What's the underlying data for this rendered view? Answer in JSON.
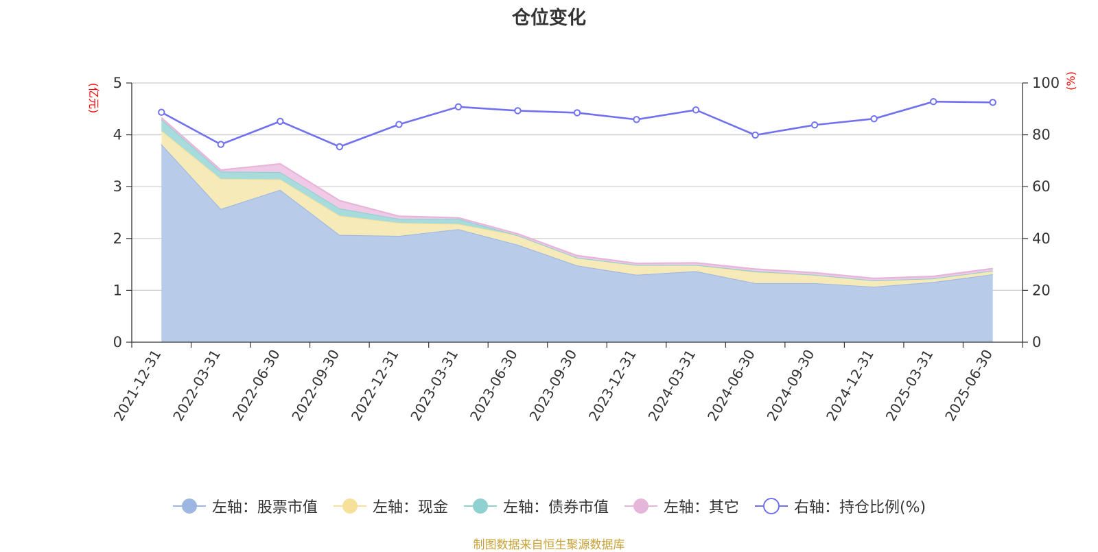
{
  "title": "仓位变化",
  "chart_data": {
    "type": "area",
    "categories": [
      "2021-12-31",
      "2022-03-31",
      "2022-06-30",
      "2022-09-30",
      "2022-12-31",
      "2023-03-31",
      "2023-06-30",
      "2023-09-30",
      "2023-12-31",
      "2024-03-31",
      "2024-06-30",
      "2024-09-30",
      "2024-12-31",
      "2025-03-31",
      "2025-06-30"
    ],
    "left_axis": {
      "unit_label": "(亿元)",
      "ylim": [
        0,
        5
      ],
      "ticks": [
        "0",
        "1",
        "2",
        "3",
        "4",
        "5"
      ]
    },
    "right_axis": {
      "unit_label": "(%)",
      "ylim": [
        0,
        100
      ],
      "ticks": [
        "0",
        "20",
        "40",
        "60",
        "80",
        "100"
      ]
    },
    "grid": true,
    "legend_position": "bottom",
    "series": [
      {
        "name": "左轴：股票市值",
        "axis": "left",
        "stack": true,
        "color": "#9db7e2",
        "fill": "#b8cce9",
        "values": [
          3.82,
          2.57,
          2.94,
          2.07,
          2.05,
          2.18,
          1.88,
          1.48,
          1.3,
          1.37,
          1.14,
          1.14,
          1.07,
          1.16,
          1.31
        ]
      },
      {
        "name": "左轴：现金",
        "axis": "left",
        "stack": true,
        "color": "#f6e19a",
        "fill": "#f7eab9",
        "values": [
          0.26,
          0.58,
          0.2,
          0.37,
          0.25,
          0.1,
          0.18,
          0.15,
          0.19,
          0.12,
          0.21,
          0.16,
          0.12,
          0.07,
          0.07
        ]
      },
      {
        "name": "左轴：债券市值",
        "axis": "left",
        "stack": true,
        "color": "#8fd0d0",
        "fill": "#a8dcdc",
        "values": [
          0.22,
          0.14,
          0.14,
          0.14,
          0.08,
          0.1,
          0.0,
          0.0,
          0.0,
          0.0,
          0.02,
          0.0,
          0.0,
          0.0,
          0.0
        ]
      },
      {
        "name": "左轴：其它",
        "axis": "left",
        "stack": true,
        "color": "#e6b5da",
        "fill": "#efc9e5",
        "values": [
          0.03,
          0.03,
          0.16,
          0.15,
          0.05,
          0.02,
          0.03,
          0.04,
          0.03,
          0.04,
          0.04,
          0.04,
          0.04,
          0.04,
          0.04
        ]
      },
      {
        "name": "右轴：持仓比例(%)",
        "axis": "right",
        "stack": false,
        "color": "#7171f0",
        "values": [
          88.7,
          76.3,
          85.2,
          75.4,
          84.0,
          90.8,
          89.3,
          88.5,
          85.9,
          89.6,
          79.9,
          83.8,
          86.2,
          92.8,
          92.5
        ]
      }
    ]
  },
  "source_note": "制图数据来自恒生聚源数据库"
}
